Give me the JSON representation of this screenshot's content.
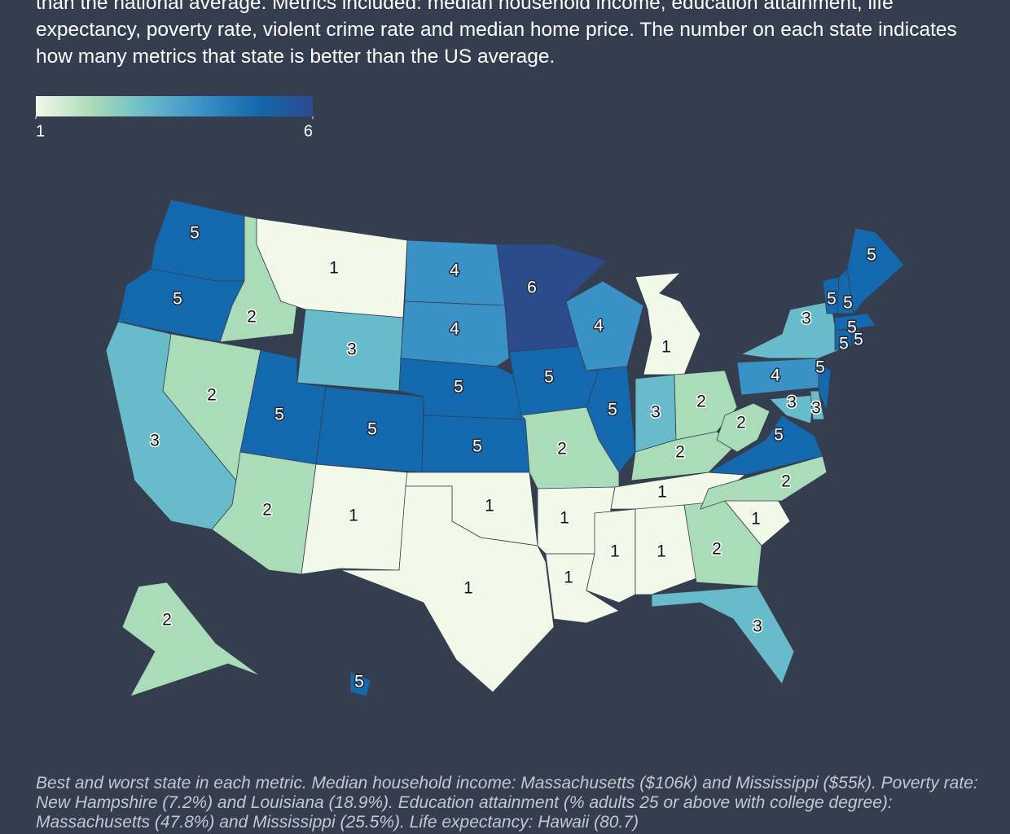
{
  "chart_data": {
    "type": "choropleth",
    "title": "than the national average. Metrics included: median household income, education attainment, life expectancy, poverty rate, violent crime rate and median home price. The number on each state indicates how many metrics that state is better than the US average.",
    "note": "Best and worst state in each metric. Median household income: Massachusetts ($106k) and Mississippi ($55k). Poverty rate: New Hampshire (7.2%) and Louisiana (18.9%). Education attainment (% adults 25 or above with college degree): Massachusetts (47.8%) and Mississippi (25.5%). Life expectancy: Hawaii (80.7)",
    "values": [
      5,
      5,
      3,
      2,
      2,
      1,
      3,
      5,
      5,
      2,
      1,
      4,
      4,
      5,
      5,
      1,
      1,
      6,
      5,
      2,
      1,
      1,
      4,
      5,
      1,
      3,
      2,
      2,
      1,
      1,
      1,
      2,
      3,
      1,
      2,
      5,
      2,
      4,
      3,
      3,
      3,
      5,
      5,
      5,
      5,
      5,
      5,
      5,
      2,
      5
    ],
    "zlim": [
      1,
      6
    ],
    "zticks": [
      1,
      6
    ],
    "colors": [
      "#f2f9e9",
      "#abdcb9",
      "#68bbca",
      "#3a91c5",
      "#1468ad",
      "#2b4b8d"
    ]
  }
}
